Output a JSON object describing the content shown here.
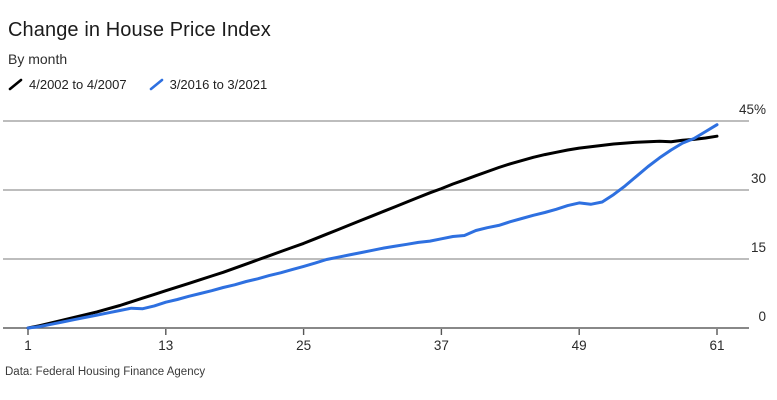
{
  "header": {
    "title": "Change in House Price Index",
    "subtitle": "By month"
  },
  "footer": {
    "source": "Data: Federal Housing Finance Agency"
  },
  "chart_data": {
    "type": "line",
    "title": "Change in House Price Index",
    "subtitle": "By month",
    "xlabel": "",
    "ylabel": "",
    "x_unit": "month index",
    "x_range": [
      1,
      61
    ],
    "ylim": [
      0,
      45
    ],
    "grid": "horizontal",
    "legend_position": "top-left",
    "source": "Data: Federal Housing Finance Agency",
    "xticks": [
      1,
      13,
      25,
      37,
      49,
      61
    ],
    "yticks": [
      {
        "value": 0,
        "label": "0"
      },
      {
        "value": 15,
        "label": "15"
      },
      {
        "value": 30,
        "label": "30"
      },
      {
        "value": 45,
        "label": "45%"
      }
    ],
    "series": [
      {
        "name": "4/2002 to 4/2007",
        "color": "#000000",
        "values": [
          0.0,
          0.5,
          1.1,
          1.7,
          2.3,
          2.9,
          3.5,
          4.2,
          4.9,
          5.7,
          6.5,
          7.3,
          8.1,
          8.9,
          9.7,
          10.5,
          11.3,
          12.1,
          13.0,
          13.9,
          14.8,
          15.7,
          16.6,
          17.5,
          18.4,
          19.4,
          20.4,
          21.4,
          22.4,
          23.4,
          24.4,
          25.4,
          26.4,
          27.4,
          28.4,
          29.4,
          30.3,
          31.3,
          32.2,
          33.1,
          34.0,
          34.9,
          35.7,
          36.4,
          37.1,
          37.7,
          38.2,
          38.7,
          39.1,
          39.4,
          39.7,
          40.0,
          40.2,
          40.4,
          40.5,
          40.6,
          40.5,
          40.8,
          41.0,
          41.3,
          41.7
        ]
      },
      {
        "name": "3/2016 to 3/2021",
        "color": "#2e70e0",
        "values": [
          0.0,
          0.3,
          0.8,
          1.3,
          1.8,
          2.3,
          2.8,
          3.3,
          3.8,
          4.3,
          4.2,
          4.8,
          5.6,
          6.2,
          6.9,
          7.5,
          8.1,
          8.8,
          9.4,
          10.1,
          10.7,
          11.4,
          12.0,
          12.7,
          13.4,
          14.1,
          14.9,
          15.4,
          15.9,
          16.4,
          16.9,
          17.4,
          17.8,
          18.2,
          18.6,
          18.9,
          19.4,
          19.9,
          20.1,
          21.2,
          21.8,
          22.3,
          23.1,
          23.8,
          24.5,
          25.1,
          25.8,
          26.6,
          27.2,
          26.9,
          27.4,
          29.0,
          30.9,
          33.0,
          35.1,
          37.0,
          38.7,
          40.2,
          41.2,
          42.7,
          44.2
        ]
      }
    ],
    "colors": {
      "gridline": "#a7a7a7",
      "baseline": "#606060",
      "tick": "#555555",
      "tick_label": "#2a2a2a"
    }
  }
}
